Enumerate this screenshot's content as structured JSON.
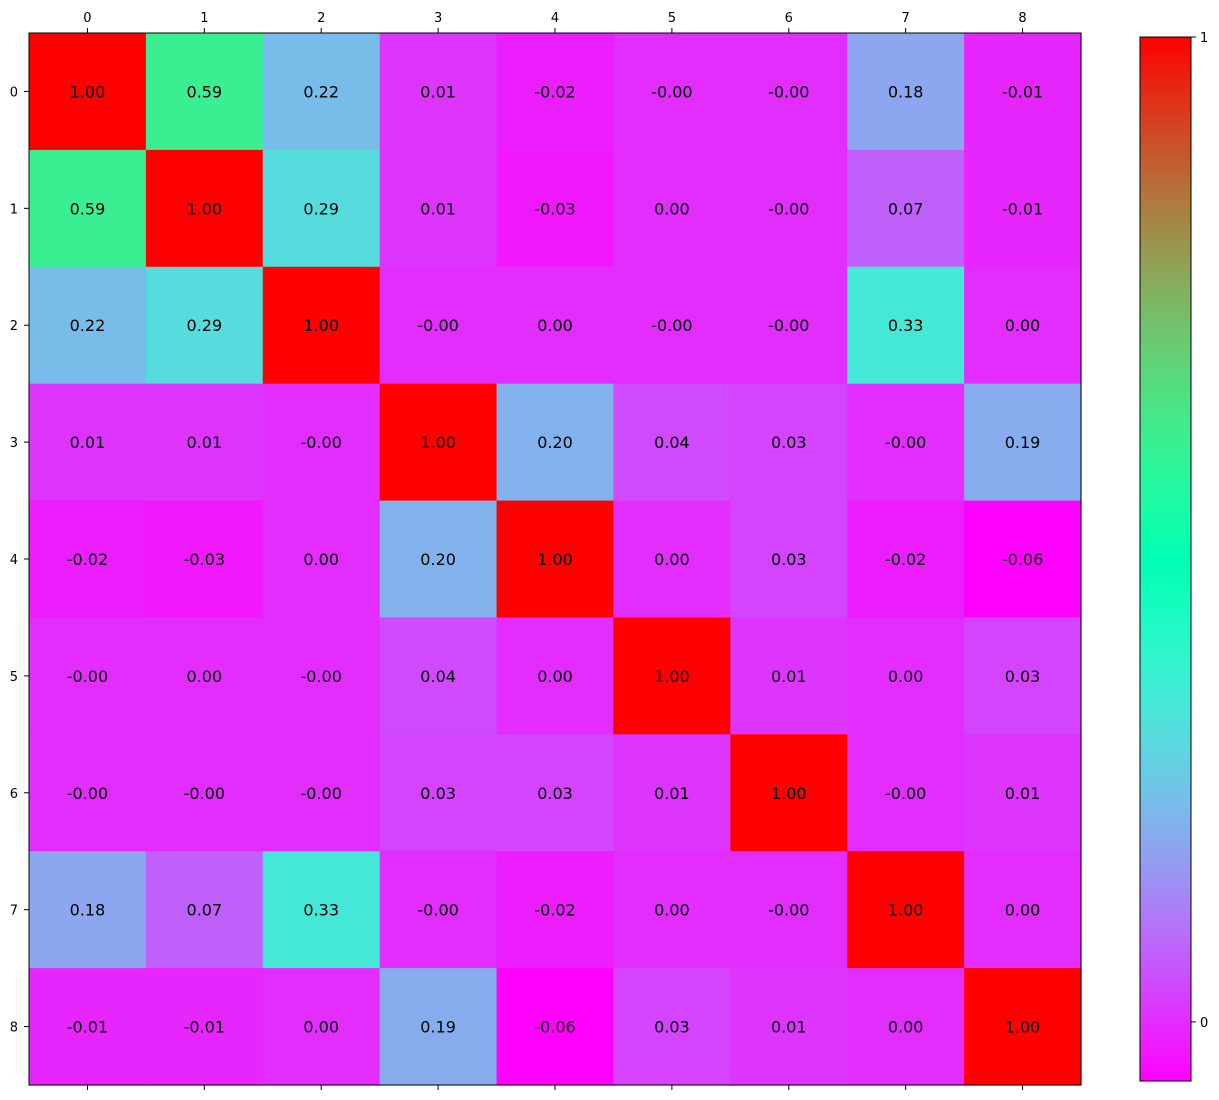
{
  "chart_data": {
    "type": "heatmap",
    "x_categories": [
      "0",
      "1",
      "2",
      "3",
      "4",
      "5",
      "6",
      "7",
      "8"
    ],
    "y_categories": [
      "0",
      "1",
      "2",
      "3",
      "4",
      "5",
      "6",
      "7",
      "8"
    ],
    "values": [
      [
        1.0,
        0.59,
        0.22,
        0.01,
        -0.02,
        -0.0,
        -0.0,
        0.18,
        -0.01
      ],
      [
        0.59,
        1.0,
        0.29,
        0.01,
        -0.03,
        0.0,
        -0.0,
        0.07,
        -0.01
      ],
      [
        0.22,
        0.29,
        1.0,
        -0.0,
        0.0,
        -0.0,
        -0.0,
        0.33,
        0.0
      ],
      [
        0.01,
        0.01,
        -0.0,
        1.0,
        0.2,
        0.04,
        0.03,
        -0.0,
        0.19
      ],
      [
        -0.02,
        -0.03,
        0.0,
        0.2,
        1.0,
        0.0,
        0.03,
        -0.02,
        -0.06
      ],
      [
        -0.0,
        0.0,
        -0.0,
        0.04,
        0.0,
        1.0,
        0.01,
        0.0,
        0.03
      ],
      [
        -0.0,
        -0.0,
        -0.0,
        0.03,
        0.03,
        0.01,
        1.0,
        -0.0,
        0.01
      ],
      [
        0.18,
        0.07,
        0.33,
        -0.0,
        -0.02,
        0.0,
        -0.0,
        1.0,
        0.0
      ],
      [
        -0.01,
        -0.01,
        0.0,
        0.19,
        -0.06,
        0.03,
        0.01,
        0.0,
        1.0
      ]
    ],
    "cell_labels": [
      [
        "1.00",
        "0.59",
        "0.22",
        "0.01",
        "-0.02",
        "-0.00",
        "-0.00",
        "0.18",
        "-0.01"
      ],
      [
        "0.59",
        "1.00",
        "0.29",
        "0.01",
        "-0.03",
        "0.00",
        "-0.00",
        "0.07",
        "-0.01"
      ],
      [
        "0.22",
        "0.29",
        "1.00",
        "-0.00",
        "0.00",
        "-0.00",
        "-0.00",
        "0.33",
        "0.00"
      ],
      [
        "0.01",
        "0.01",
        "-0.00",
        "1.00",
        "0.20",
        "0.04",
        "0.03",
        "-0.00",
        "0.19"
      ],
      [
        "-0.02",
        "-0.03",
        "0.00",
        "0.20",
        "1.00",
        "0.00",
        "0.03",
        "-0.02",
        "-0.06"
      ],
      [
        "-0.00",
        "0.00",
        "-0.00",
        "0.04",
        "0.00",
        "1.00",
        "0.01",
        "0.00",
        "0.03"
      ],
      [
        "-0.00",
        "-0.00",
        "-0.00",
        "0.03",
        "0.03",
        "0.01",
        "1.00",
        "-0.00",
        "0.01"
      ],
      [
        "0.18",
        "0.07",
        "0.33",
        "-0.00",
        "-0.02",
        "0.00",
        "-0.00",
        "1.00",
        "0.00"
      ],
      [
        "-0.01",
        "-0.01",
        "0.00",
        "0.19",
        "-0.06",
        "0.03",
        "0.01",
        "0.00",
        "1.00"
      ]
    ],
    "colormap": "rainbow",
    "colormap_stops": [
      "#8000ff",
      "#2adddd",
      "#d4dd80",
      "#ff0000"
    ],
    "color_range": [
      -0.06,
      1.0
    ],
    "colorbar": {
      "ticks": [
        0,
        1
      ],
      "tick_labels": [
        "0",
        "1"
      ]
    },
    "x_tick_position": "top",
    "grid": false,
    "legend": "colorbar-right"
  }
}
